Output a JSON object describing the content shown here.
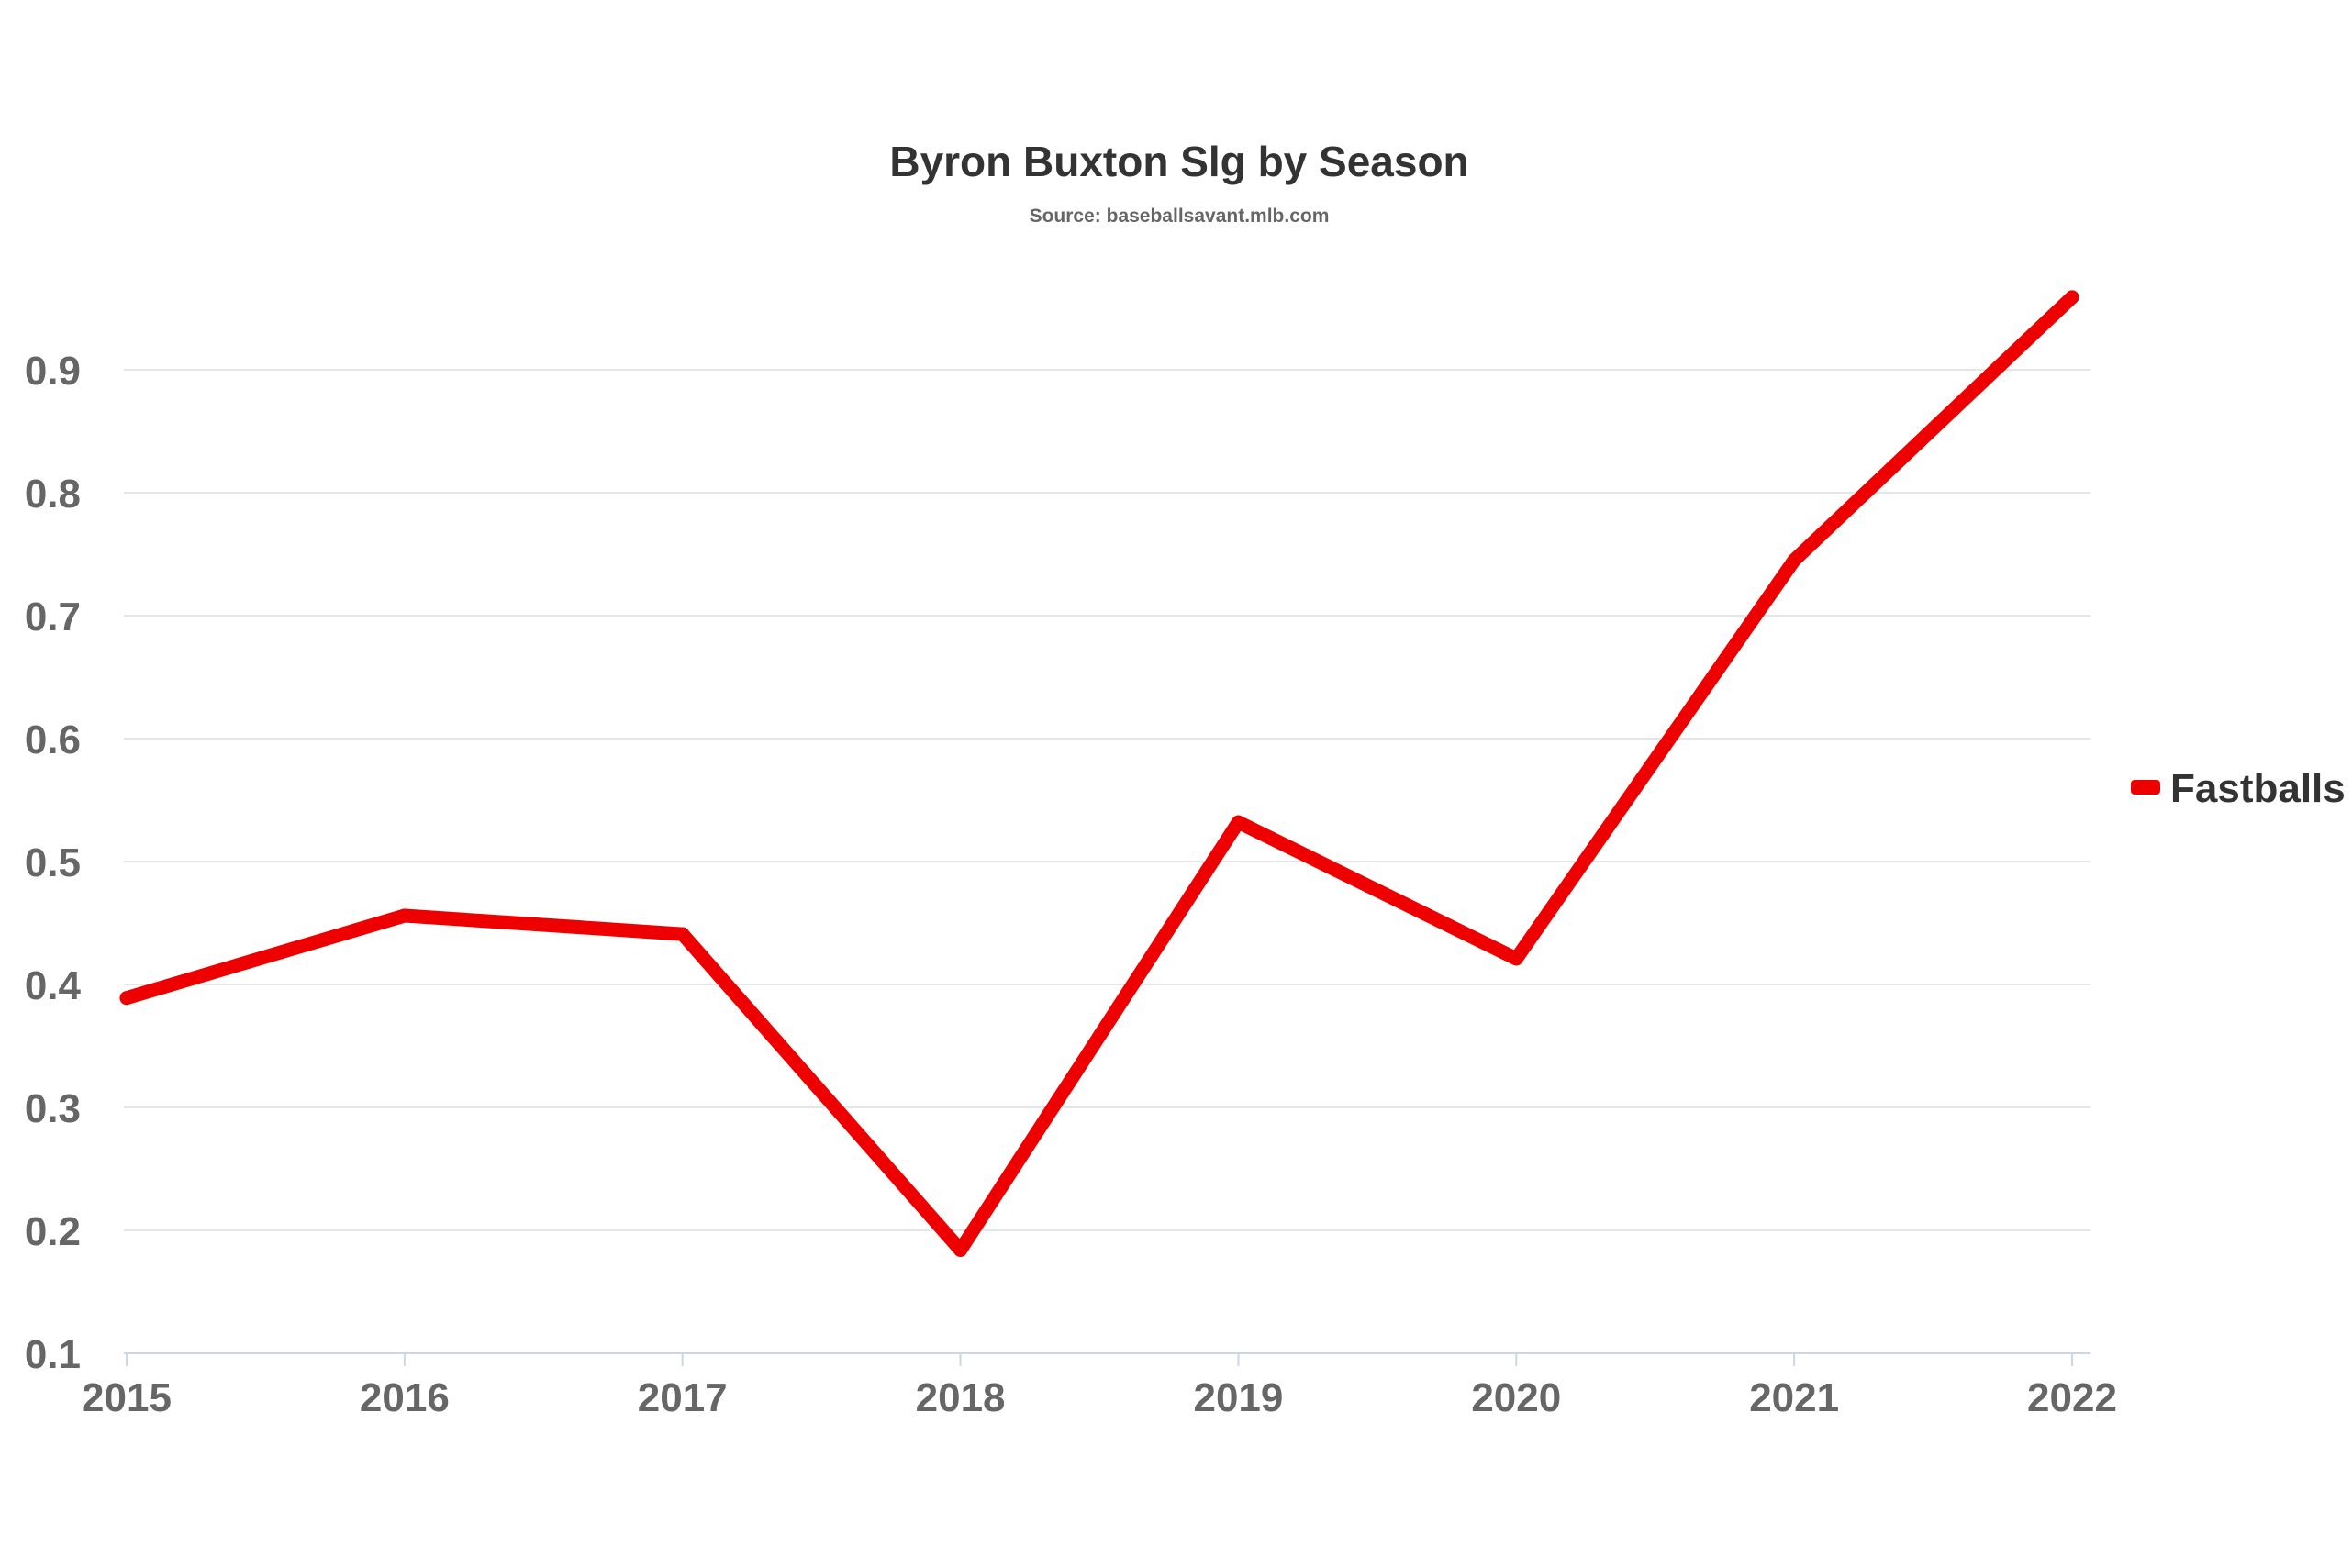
{
  "chart_data": {
    "type": "line",
    "title": "Byron Buxton Slg by Season",
    "subtitle": "Source: baseballsavant.mlb.com",
    "xlabel": "",
    "ylabel": "",
    "categories": [
      "2015",
      "2016",
      "2017",
      "2018",
      "2019",
      "2020",
      "2021",
      "2022"
    ],
    "y_ticks": [
      "0.1",
      "0.2",
      "0.3",
      "0.4",
      "0.5",
      "0.6",
      "0.7",
      "0.8",
      "0.9"
    ],
    "ylim": [
      0.1,
      0.9
    ],
    "grid": true,
    "legend_position": "right",
    "series": [
      {
        "name": "Fastballs",
        "color": "#ee0000",
        "values": [
          0.389,
          0.456,
          0.441,
          0.184,
          0.532,
          0.421,
          0.745,
          0.959
        ]
      }
    ]
  }
}
